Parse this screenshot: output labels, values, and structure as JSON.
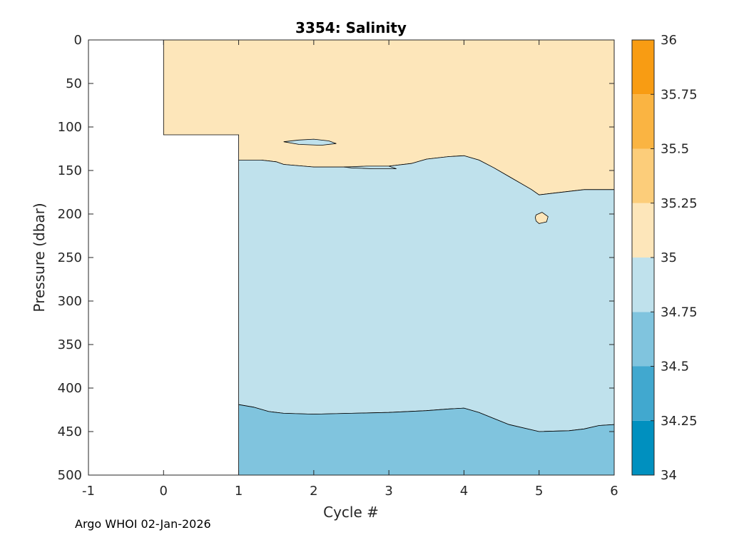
{
  "chart_data": {
    "type": "contourf",
    "title": "3354:  Salinity",
    "xlabel": "Cycle #",
    "ylabel": "Pressure (dbar)",
    "xlim": [
      -1,
      6
    ],
    "ylim": [
      0,
      500
    ],
    "y_reversed": true,
    "xticks": [
      -1,
      0,
      1,
      2,
      3,
      4,
      5,
      6
    ],
    "yticks": [
      0,
      50,
      100,
      150,
      200,
      250,
      300,
      350,
      400,
      450,
      500
    ],
    "colorbar": {
      "range": [
        34,
        36
      ],
      "ticks": [
        "34",
        "34.25",
        "34.5",
        "34.75",
        "35",
        "35.25",
        "35.5",
        "35.75",
        "36"
      ],
      "bands": [
        {
          "from": 34.0,
          "to": 34.25,
          "color": "#0090BF"
        },
        {
          "from": 34.25,
          "to": 34.5,
          "color": "#41A8CF"
        },
        {
          "from": 34.5,
          "to": 34.75,
          "color": "#80C4DE"
        },
        {
          "from": 34.75,
          "to": 35.0,
          "color": "#BFE1EC"
        },
        {
          "from": 35.0,
          "to": 35.25,
          "color": "#FDE6BA"
        },
        {
          "from": 35.25,
          "to": 35.5,
          "color": "#FCCD7A"
        },
        {
          "from": 35.5,
          "to": 35.75,
          "color": "#FAB442"
        },
        {
          "from": 35.75,
          "to": 36.0,
          "color": "#F89C13"
        }
      ]
    },
    "regions": [
      {
        "name": "surface-35-35.25",
        "color": "#FDE6BA",
        "points": [
          [
            0,
            0
          ],
          [
            6,
            0
          ],
          [
            6,
            172
          ],
          [
            5.6,
            172
          ],
          [
            5.2,
            176
          ],
          [
            5.0,
            178
          ],
          [
            4.9,
            172
          ],
          [
            4.8,
            167
          ],
          [
            4.6,
            157
          ],
          [
            4.4,
            147
          ],
          [
            4.2,
            138
          ],
          [
            4.0,
            133
          ],
          [
            3.8,
            134
          ],
          [
            3.6,
            136
          ],
          [
            3.5,
            137
          ],
          [
            3.3,
            142
          ],
          [
            3.0,
            145
          ],
          [
            2.5,
            146
          ],
          [
            2.0,
            146
          ],
          [
            1.6,
            143
          ],
          [
            1.5,
            140
          ],
          [
            1.3,
            138
          ],
          [
            1.0,
            138
          ],
          [
            1.0,
            109
          ],
          [
            0,
            109
          ]
        ]
      },
      {
        "name": "interior-34.75-35",
        "color": "#BFE1EC",
        "points": [
          [
            1,
            138
          ],
          [
            1.3,
            138
          ],
          [
            1.5,
            140
          ],
          [
            1.6,
            143
          ],
          [
            2.0,
            146
          ],
          [
            2.5,
            146
          ],
          [
            3.0,
            145
          ],
          [
            3.3,
            142
          ],
          [
            3.5,
            137
          ],
          [
            3.6,
            136
          ],
          [
            3.8,
            134
          ],
          [
            4.0,
            133
          ],
          [
            4.2,
            138
          ],
          [
            4.4,
            147
          ],
          [
            4.6,
            157
          ],
          [
            4.8,
            167
          ],
          [
            4.9,
            172
          ],
          [
            5.0,
            178
          ],
          [
            5.2,
            176
          ],
          [
            5.6,
            172
          ],
          [
            6,
            172
          ],
          [
            6,
            442
          ],
          [
            5.8,
            443
          ],
          [
            5.6,
            447
          ],
          [
            5.4,
            449
          ],
          [
            5.0,
            450
          ],
          [
            4.6,
            442
          ],
          [
            4.4,
            435
          ],
          [
            4.2,
            428
          ],
          [
            4.0,
            423
          ],
          [
            3.8,
            424
          ],
          [
            3.5,
            426
          ],
          [
            3.0,
            428
          ],
          [
            2.5,
            429
          ],
          [
            2.0,
            430
          ],
          [
            1.6,
            429
          ],
          [
            1.4,
            427
          ],
          [
            1.2,
            422
          ],
          [
            1.0,
            419
          ]
        ]
      },
      {
        "name": "deep-34.5-34.75",
        "color": "#80C4DE",
        "points": [
          [
            1,
            419
          ],
          [
            1.2,
            422
          ],
          [
            1.4,
            427
          ],
          [
            1.6,
            429
          ],
          [
            2.0,
            430
          ],
          [
            2.5,
            429
          ],
          [
            3.0,
            428
          ],
          [
            3.5,
            426
          ],
          [
            3.8,
            424
          ],
          [
            4.0,
            423
          ],
          [
            4.2,
            428
          ],
          [
            4.4,
            435
          ],
          [
            4.6,
            442
          ],
          [
            5.0,
            450
          ],
          [
            5.4,
            449
          ],
          [
            5.6,
            447
          ],
          [
            5.8,
            443
          ],
          [
            6,
            442
          ],
          [
            6,
            500
          ],
          [
            1,
            500
          ]
        ]
      },
      {
        "name": "lens-cycle2",
        "color": "#BFE1EC",
        "points": [
          [
            1.6,
            117
          ],
          [
            1.8,
            115
          ],
          [
            2.0,
            114
          ],
          [
            2.2,
            116
          ],
          [
            2.3,
            119
          ],
          [
            2.1,
            121
          ],
          [
            1.8,
            120
          ],
          [
            1.6,
            117
          ]
        ]
      },
      {
        "name": "thin-lens-cycle3",
        "color": "#BFE1EC",
        "points": [
          [
            2.4,
            146
          ],
          [
            2.7,
            145
          ],
          [
            3.0,
            145
          ],
          [
            3.1,
            148
          ],
          [
            2.8,
            148
          ],
          [
            2.5,
            147
          ]
        ]
      },
      {
        "name": "blob-cycle5",
        "color": "#FDE6BA",
        "points": [
          [
            4.96,
            201
          ],
          [
            5.04,
            198
          ],
          [
            5.12,
            203
          ],
          [
            5.1,
            209
          ],
          [
            5.0,
            211
          ],
          [
            4.96,
            208
          ],
          [
            4.95,
            204
          ]
        ]
      }
    ]
  },
  "footer": {
    "credit": "Argo WHOI 02-Jan-2026"
  }
}
